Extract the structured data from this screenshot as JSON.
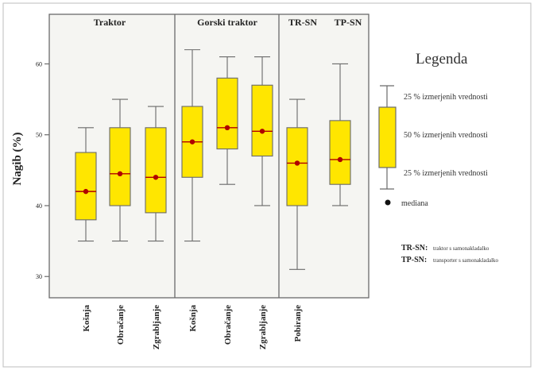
{
  "colors": {
    "page": "#ffffff",
    "panel_bg": "#f5f5f2",
    "box_fill": "#ffe600",
    "median": "#b00000",
    "line": "#6a6a6a",
    "text": "#222222"
  },
  "chart_data": {
    "type": "boxplot",
    "title": "",
    "ylabel": "Nagib (%)",
    "ylim": [
      27,
      67
    ],
    "yticks": [
      30,
      40,
      50,
      60
    ],
    "groups": [
      {
        "label": "Traktor",
        "categories": [
          "Košnja",
          "Obračanje",
          "Zgrabljanje"
        ]
      },
      {
        "label": "Gorski traktor",
        "categories": [
          "Košnja",
          "Obračanje",
          "Zgrabljanje"
        ]
      },
      {
        "label": "TR-SN",
        "categories": [
          "Pobiranje"
        ]
      },
      {
        "label": "TP-SN",
        "categories": []
      }
    ],
    "boxes": [
      {
        "group": "Traktor",
        "category": "Košnja",
        "min": 35,
        "q1": 38,
        "median": 42,
        "q3": 47.5,
        "max": 51
      },
      {
        "group": "Traktor",
        "category": "Obračanje",
        "min": 35,
        "q1": 40,
        "median": 44.5,
        "q3": 51,
        "max": 55
      },
      {
        "group": "Traktor",
        "category": "Zgrabljanje",
        "min": 35,
        "q1": 39,
        "median": 44,
        "q3": 51,
        "max": 54
      },
      {
        "group": "Gorski traktor",
        "category": "Košnja",
        "min": 35,
        "q1": 44,
        "median": 49,
        "q3": 54,
        "max": 62
      },
      {
        "group": "Gorski traktor",
        "category": "Obračanje",
        "min": 43,
        "q1": 48,
        "median": 51,
        "q3": 58,
        "max": 61
      },
      {
        "group": "Gorski traktor",
        "category": "Zgrabljanje",
        "min": 40,
        "q1": 47,
        "median": 50.5,
        "q3": 57,
        "max": 61
      },
      {
        "group": "TR-SN",
        "category": "Pobiranje",
        "min": 31,
        "q1": 40,
        "median": 46,
        "q3": 51,
        "max": 55
      },
      {
        "group": "TP-SN",
        "category": "",
        "min": 40,
        "q1": 43,
        "median": 46.5,
        "q3": 52,
        "max": 60
      }
    ]
  },
  "legend": {
    "title": "Legenda",
    "upper_label": "25 % izmerjenih vrednosti",
    "middle_label": "50 % izmerjenih vrednosti",
    "lower_label": "25 % izmerjenih vrednosti",
    "median_label": "mediana",
    "notes": [
      {
        "abbr": "TR-SN:",
        "text": "traktor s samonakladalko"
      },
      {
        "abbr": "TP-SN:",
        "text": "transporter s samonakladalko"
      }
    ]
  }
}
